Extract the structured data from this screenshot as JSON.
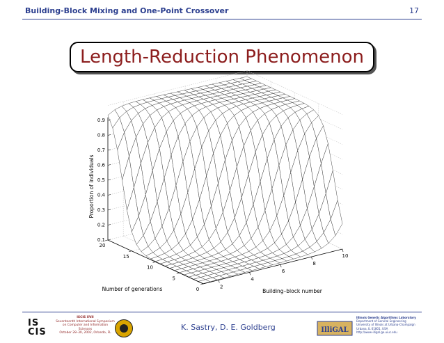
{
  "header": {
    "title": "Building-Block Mixing and One-Point Crossover",
    "page_number": "17"
  },
  "slide_title": "Length-Reduction Phenomenon",
  "chart_data": {
    "type": "surface",
    "zlabel": "Proportion of individuals",
    "ylabel": "Number of generations",
    "xlabel": "Building–block number",
    "z_ticks": [
      "0.1",
      "0.2",
      "0.3",
      "0.4",
      "0.5",
      "0.6",
      "0.7",
      "0.8",
      "0.9"
    ],
    "y_ticks": [
      "0",
      "5",
      "10",
      "15",
      "20"
    ],
    "x_ticks": [
      "2",
      "4",
      "6",
      "8",
      "10"
    ],
    "zlim": [
      0.1,
      1.0
    ],
    "generations_range": [
      0,
      20
    ],
    "building_block_range": [
      1,
      10
    ],
    "grid": true
  },
  "footer": {
    "authors": "K. Sastry, D. E. Goldberg",
    "iscis_logo": "IS CIS",
    "iscis_lines": [
      "ISCIS XVII",
      "Seventeenth International Symposium",
      "on Computer and Information Sciences",
      "October 28–30, 2002, Orlando, FL"
    ],
    "igal_logo": "IlliGAL",
    "igal_lines": [
      "Illinois Genetic Algorithms Laboratory",
      "Department of General Engineering",
      "University of Illinois at Urbana-Champaign",
      "Urbana, IL 61801, USA",
      "http://www-illigal.ge.uiuc.edu"
    ]
  }
}
